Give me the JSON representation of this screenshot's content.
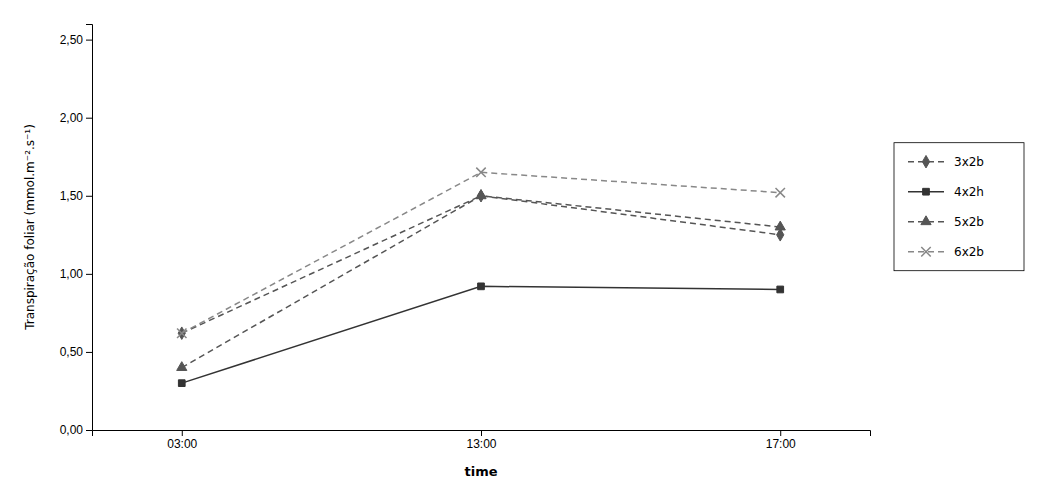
{
  "chart_data": {
    "type": "line",
    "categories": [
      "03:00",
      "13:00",
      "17:00"
    ],
    "series": [
      {
        "name": "3x2b",
        "color": "#555555",
        "marker": "diamond",
        "line_style": "dashed",
        "values": [
          0.62,
          1.5,
          1.25
        ]
      },
      {
        "name": "4x2h",
        "color": "#333333",
        "marker": "square",
        "line_style": "solid",
        "values": [
          0.3,
          0.92,
          0.9
        ]
      },
      {
        "name": "5x2b",
        "color": "#555555",
        "marker": "triangle",
        "line_style": "dashed",
        "values": [
          0.4,
          1.5,
          1.3
        ]
      },
      {
        "name": "6x2b",
        "color": "#888888",
        "marker": "x",
        "line_style": "dashed",
        "values": [
          0.62,
          1.65,
          1.52
        ]
      }
    ],
    "xlabel": "time",
    "ylabel": "Transpiração foliar (mmol.m⁻².s⁻¹)",
    "ylim": [
      0.0,
      2.6
    ],
    "yticks": [
      {
        "value": 0.0,
        "label": "0,00"
      },
      {
        "value": 0.5,
        "label": "0,50"
      },
      {
        "value": 1.0,
        "label": "1,00"
      },
      {
        "value": 1.5,
        "label": "1,50"
      },
      {
        "value": 2.0,
        "label": "2,00"
      },
      {
        "value": 2.5,
        "label": "2,50"
      }
    ],
    "grid": false,
    "legend": "right"
  }
}
